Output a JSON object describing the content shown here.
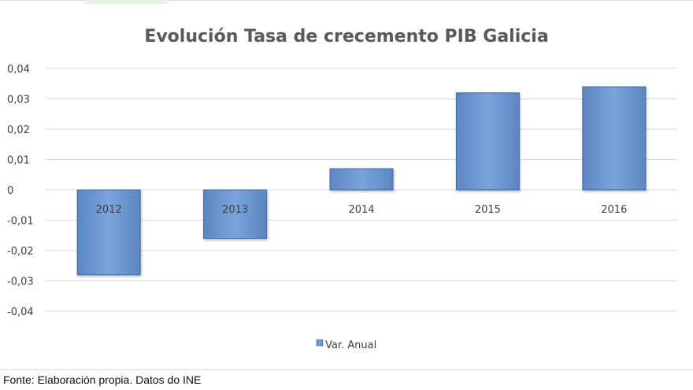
{
  "chart_data": {
    "type": "bar",
    "title": "Evolución Tasa de crecemento PIB Galicia",
    "categories": [
      "2012",
      "2013",
      "2014",
      "2015",
      "2016"
    ],
    "series": [
      {
        "name": "Var. Anual",
        "values": [
          -0.028,
          -0.016,
          0.007,
          0.032,
          0.034
        ]
      }
    ],
    "ylim": [
      -0.04,
      0.04
    ],
    "yticks": [
      "0,04",
      "0,03",
      "0,02",
      "0,01",
      "0",
      "-0,01",
      "-0,02",
      "-0,03",
      "-0,04"
    ],
    "ytick_values": [
      0.04,
      0.03,
      0.02,
      0.01,
      0,
      -0.01,
      -0.02,
      -0.03,
      -0.04
    ],
    "grid": true,
    "legend_position": "bottom",
    "bar_color": "#6b97d0",
    "bar_edge_color": "#3f6aa3"
  },
  "footer": {
    "source": "Fonte: Elaboración propia. Datos do INE"
  }
}
